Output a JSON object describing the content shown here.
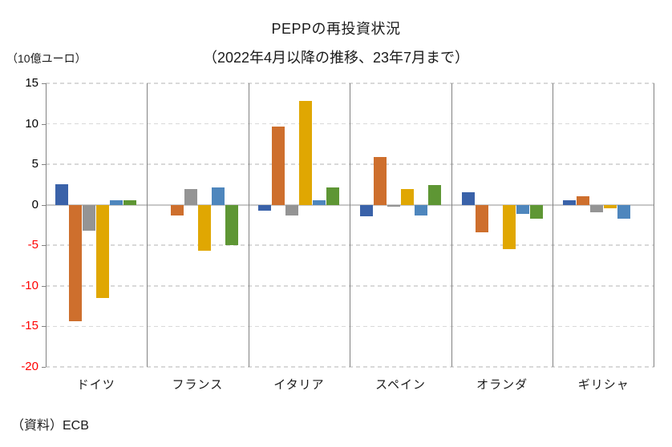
{
  "chart_data": {
    "type": "bar",
    "title": "PEPPの再投資状況",
    "subtitle": "（2022年4月以降の推移、23年7月まで）",
    "unit_label": "（10億ユーロ）",
    "source": "（資料）ECB",
    "categories": [
      "ドイツ",
      "フランス",
      "イタリア",
      "スペイン",
      "オランダ",
      "ギリシャ"
    ],
    "series": [
      {
        "name": "series-1-dark-blue",
        "color": "#3A62A9",
        "values": [
          2.5,
          0,
          -0.7,
          -1.4,
          1.6,
          0.6
        ]
      },
      {
        "name": "series-2-orange",
        "color": "#CE6F2D",
        "values": [
          -14.4,
          -1.3,
          9.7,
          5.9,
          -3.4,
          1.1
        ]
      },
      {
        "name": "series-3-gray",
        "color": "#949494",
        "values": [
          -3.2,
          1.9,
          -1.3,
          -0.2,
          0,
          -0.9
        ]
      },
      {
        "name": "series-4-gold",
        "color": "#E0A702",
        "values": [
          -11.5,
          -5.7,
          12.8,
          1.9,
          -5.5,
          -0.4
        ]
      },
      {
        "name": "series-5-light-blue",
        "color": "#4E86BD",
        "values": [
          0.6,
          2.1,
          0.6,
          -1.3,
          -1.1,
          -1.7
        ]
      },
      {
        "name": "series-6-green",
        "color": "#5E9634",
        "values": [
          0.6,
          -5.0,
          2.1,
          2.4,
          -1.7,
          0
        ]
      }
    ],
    "ylim": [
      -20,
      15
    ],
    "yticks": [
      15,
      10,
      5,
      0,
      -5,
      -10,
      -15,
      -20
    ],
    "ytick_colors": {
      "positive": "#000000",
      "negative": "#FF0000"
    },
    "xlabel": "",
    "ylabel": "（10億ユーロ）",
    "grid": "horizontal-dashed",
    "legend": "none"
  }
}
